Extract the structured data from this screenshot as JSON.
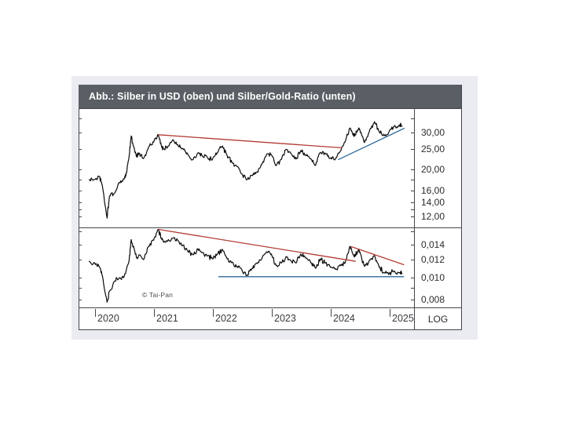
{
  "header": {
    "title": "Abb.: Silber in USD (oben) und Silber/Gold-Ratio (unten)"
  },
  "watermark": "© Tai-Pan",
  "axis": {
    "scale_label": "LOG"
  },
  "colors": {
    "header_bg": "#595f64",
    "header_text": "#ffffff",
    "panel_bg": "#ebecf1",
    "frame_line": "#45464b",
    "series_line": "#0a0a0a",
    "trend_red": "#b23b34",
    "trend_blue": "#2f6a9e",
    "label_text": "#2b2b30"
  },
  "xticks": [
    {
      "value": 2020,
      "label": "2020"
    },
    {
      "value": 2021,
      "label": "2021"
    },
    {
      "value": 2022,
      "label": "2022"
    },
    {
      "value": 2023,
      "label": "2023"
    },
    {
      "value": 2024,
      "label": "2024"
    },
    {
      "value": 2025,
      "label": "2025"
    }
  ],
  "chart_data": [
    {
      "type": "line",
      "panel": "oben",
      "title": "Silber in USD",
      "yscale": "log",
      "grid": false,
      "legend": "none",
      "xlim": [
        2019.9,
        2025.45
      ],
      "ylim": [
        10.66,
        38.8
      ],
      "yticks": [
        {
          "value": 35,
          "label": ""
        },
        {
          "value": 30,
          "label": "30,00"
        },
        {
          "value": 25,
          "label": "25,00"
        },
        {
          "value": 20,
          "label": "20,00"
        },
        {
          "value": 18,
          "label": ""
        },
        {
          "value": 16,
          "label": "16,00"
        },
        {
          "value": 14,
          "label": "14,00"
        },
        {
          "value": 13,
          "label": ""
        },
        {
          "value": 12,
          "label": "12,00"
        }
      ],
      "series": [
        {
          "name": "Silber in USD",
          "points": [
            [
              2019.9,
              17.9
            ],
            [
              2020.0,
              18.0
            ],
            [
              2020.08,
              18.6
            ],
            [
              2020.13,
              16.8
            ],
            [
              2020.21,
              11.8
            ],
            [
              2020.25,
              15.0
            ],
            [
              2020.33,
              15.4
            ],
            [
              2020.42,
              17.4
            ],
            [
              2020.5,
              18.1
            ],
            [
              2020.54,
              19.3
            ],
            [
              2020.58,
              22.6
            ],
            [
              2020.62,
              28.9
            ],
            [
              2020.65,
              26.3
            ],
            [
              2020.71,
              23.0
            ],
            [
              2020.75,
              24.0
            ],
            [
              2020.83,
              22.6
            ],
            [
              2020.92,
              25.8
            ],
            [
              2021.0,
              27.0
            ],
            [
              2021.08,
              29.3
            ],
            [
              2021.13,
              26.1
            ],
            [
              2021.17,
              25.1
            ],
            [
              2021.25,
              25.9
            ],
            [
              2021.33,
              27.8
            ],
            [
              2021.42,
              25.9
            ],
            [
              2021.5,
              25.2
            ],
            [
              2021.58,
              23.7
            ],
            [
              2021.67,
              22.3
            ],
            [
              2021.75,
              24.0
            ],
            [
              2021.83,
              23.2
            ],
            [
              2021.92,
              22.7
            ],
            [
              2022.0,
              22.4
            ],
            [
              2022.08,
              24.1
            ],
            [
              2022.17,
              25.9
            ],
            [
              2022.25,
              23.2
            ],
            [
              2022.33,
              21.7
            ],
            [
              2022.42,
              20.7
            ],
            [
              2022.5,
              19.1
            ],
            [
              2022.58,
              17.9
            ],
            [
              2022.67,
              18.8
            ],
            [
              2022.75,
              19.4
            ],
            [
              2022.83,
              21.2
            ],
            [
              2022.92,
              23.7
            ],
            [
              2023.0,
              23.6
            ],
            [
              2023.08,
              20.9
            ],
            [
              2023.17,
              22.4
            ],
            [
              2023.25,
              25.0
            ],
            [
              2023.33,
              23.9
            ],
            [
              2023.42,
              22.5
            ],
            [
              2023.5,
              24.7
            ],
            [
              2023.58,
              23.5
            ],
            [
              2023.67,
              22.5
            ],
            [
              2023.75,
              21.0
            ],
            [
              2023.83,
              24.2
            ],
            [
              2023.92,
              23.9
            ],
            [
              2024.0,
              22.7
            ],
            [
              2024.08,
              22.3
            ],
            [
              2024.17,
              24.5
            ],
            [
              2024.25,
              27.1
            ],
            [
              2024.33,
              31.5
            ],
            [
              2024.38,
              29.5
            ],
            [
              2024.42,
              29.2
            ],
            [
              2024.46,
              30.8
            ],
            [
              2024.5,
              30.9
            ],
            [
              2024.58,
              26.9
            ],
            [
              2024.67,
              31.0
            ],
            [
              2024.75,
              33.8
            ],
            [
              2024.83,
              30.3
            ],
            [
              2024.92,
              29.0
            ],
            [
              2025.0,
              30.4
            ],
            [
              2025.08,
              32.1
            ],
            [
              2025.17,
              32.6
            ],
            [
              2025.22,
              32.3
            ]
          ]
        }
      ],
      "trendlines": [
        {
          "name": "fallende-widerstandslinie",
          "color_key": "trend_red",
          "from": [
            2021.08,
            29.3
          ],
          "to": [
            2024.2,
            25.4
          ]
        },
        {
          "name": "steigende-unterstuetzungslinie",
          "color_key": "trend_blue",
          "from": [
            2024.13,
            22.3
          ],
          "to": [
            2025.26,
            31.5
          ]
        }
      ]
    },
    {
      "type": "line",
      "panel": "unten",
      "title": "Silber/Gold-Ratio",
      "yscale": "log",
      "grid": false,
      "legend": "none",
      "xlim": [
        2019.9,
        2025.45
      ],
      "ylim": [
        0.0074,
        0.0165
      ],
      "yticks": [
        {
          "value": 0.016,
          "label": ""
        },
        {
          "value": 0.014,
          "label": "0,014"
        },
        {
          "value": 0.012,
          "label": "0,012"
        },
        {
          "value": 0.01,
          "label": "0,010"
        },
        {
          "value": 0.009,
          "label": ""
        },
        {
          "value": 0.008,
          "label": "0,008"
        }
      ],
      "series": [
        {
          "name": "Silber/Gold-Ratio",
          "points": [
            [
              2019.9,
              0.0118
            ],
            [
              2020.0,
              0.0116
            ],
            [
              2020.08,
              0.0112
            ],
            [
              2020.13,
              0.0102
            ],
            [
              2020.21,
              0.0078
            ],
            [
              2020.25,
              0.0087
            ],
            [
              2020.33,
              0.0096
            ],
            [
              2020.42,
              0.01
            ],
            [
              2020.5,
              0.0101
            ],
            [
              2020.58,
              0.0117
            ],
            [
              2020.62,
              0.0147
            ],
            [
              2020.67,
              0.0134
            ],
            [
              2020.71,
              0.0122
            ],
            [
              2020.75,
              0.0126
            ],
            [
              2020.83,
              0.012
            ],
            [
              2020.92,
              0.0138
            ],
            [
              2021.0,
              0.0146
            ],
            [
              2021.08,
              0.0163
            ],
            [
              2021.13,
              0.0149
            ],
            [
              2021.17,
              0.0143
            ],
            [
              2021.25,
              0.0147
            ],
            [
              2021.33,
              0.0149
            ],
            [
              2021.42,
              0.0145
            ],
            [
              2021.5,
              0.0139
            ],
            [
              2021.58,
              0.0131
            ],
            [
              2021.67,
              0.0126
            ],
            [
              2021.75,
              0.0134
            ],
            [
              2021.83,
              0.0129
            ],
            [
              2021.92,
              0.0125
            ],
            [
              2022.0,
              0.0121
            ],
            [
              2022.08,
              0.0127
            ],
            [
              2022.17,
              0.0133
            ],
            [
              2022.25,
              0.0121
            ],
            [
              2022.33,
              0.0117
            ],
            [
              2022.42,
              0.0112
            ],
            [
              2022.5,
              0.0108
            ],
            [
              2022.58,
              0.0102
            ],
            [
              2022.67,
              0.011
            ],
            [
              2022.75,
              0.0116
            ],
            [
              2022.83,
              0.012
            ],
            [
              2022.92,
              0.013
            ],
            [
              2023.0,
              0.0127
            ],
            [
              2023.08,
              0.0113
            ],
            [
              2023.17,
              0.0116
            ],
            [
              2023.25,
              0.0124
            ],
            [
              2023.33,
              0.0119
            ],
            [
              2023.42,
              0.0116
            ],
            [
              2023.5,
              0.0127
            ],
            [
              2023.58,
              0.0122
            ],
            [
              2023.67,
              0.0116
            ],
            [
              2023.75,
              0.011
            ],
            [
              2023.83,
              0.0121
            ],
            [
              2023.92,
              0.0116
            ],
            [
              2024.0,
              0.0111
            ],
            [
              2024.08,
              0.0109
            ],
            [
              2024.17,
              0.0113
            ],
            [
              2024.25,
              0.0116
            ],
            [
              2024.33,
              0.0137
            ],
            [
              2024.38,
              0.0128
            ],
            [
              2024.42,
              0.0125
            ],
            [
              2024.46,
              0.013
            ],
            [
              2024.5,
              0.013
            ],
            [
              2024.58,
              0.0112
            ],
            [
              2024.67,
              0.012
            ],
            [
              2024.75,
              0.0125
            ],
            [
              2024.83,
              0.0111
            ],
            [
              2024.92,
              0.0105
            ],
            [
              2025.0,
              0.0104
            ],
            [
              2025.08,
              0.0107
            ],
            [
              2025.17,
              0.0105
            ],
            [
              2025.22,
              0.0104
            ]
          ]
        }
      ],
      "trendlines": [
        {
          "name": "fallende-widerstandslinie-1",
          "color_key": "trend_red",
          "from": [
            2021.08,
            0.0163
          ],
          "to": [
            2024.43,
            0.0118
          ]
        },
        {
          "name": "fallende-widerstandslinie-2",
          "color_key": "trend_red",
          "from": [
            2024.35,
            0.0137
          ],
          "to": [
            2025.25,
            0.0114
          ]
        },
        {
          "name": "horizontale-unterstuetzung",
          "color_key": "trend_blue",
          "from": [
            2022.1,
            0.0101
          ],
          "to": [
            2025.25,
            0.0101
          ]
        }
      ]
    }
  ]
}
